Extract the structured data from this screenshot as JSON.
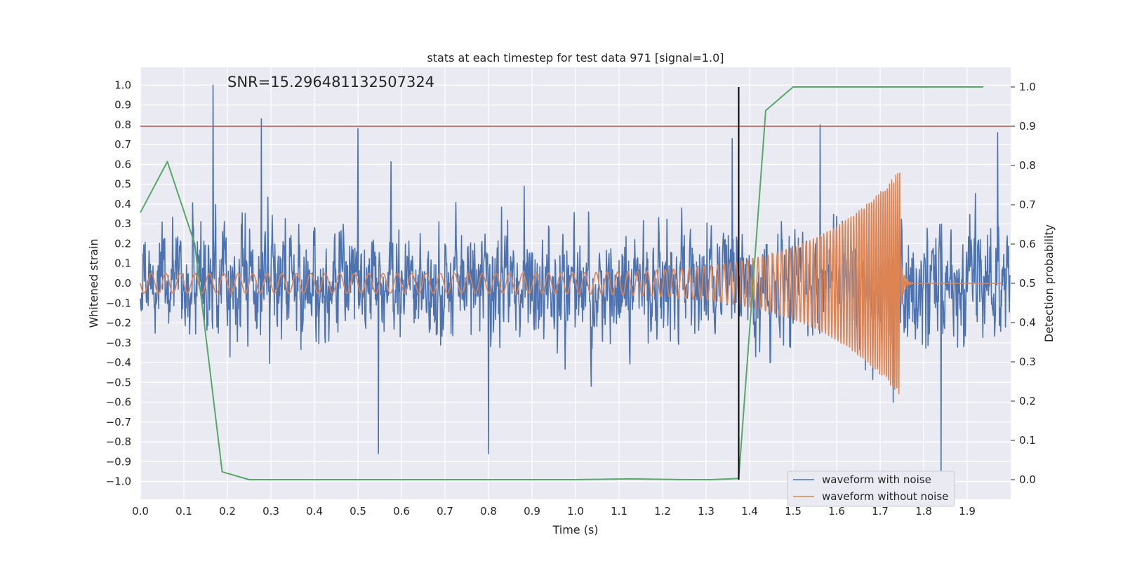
{
  "chart_data": {
    "type": "line",
    "title": "stats at each timestep for test data 971 [signal=1.0]",
    "annotation": "SNR=15.296481132507324",
    "xlabel": "Time (s)",
    "ylabel_left": "Whitened strain",
    "ylabel_right": "Detection probability",
    "xlim": [
      0.0,
      2.0
    ],
    "ylim_left": [
      -1.09,
      1.09
    ],
    "ylim_right": [
      -0.05,
      1.05
    ],
    "x_ticks": [
      "0.0",
      "0.1",
      "0.2",
      "0.3",
      "0.4",
      "0.5",
      "0.6",
      "0.7",
      "0.8",
      "0.9",
      "1.0",
      "1.1",
      "1.2",
      "1.3",
      "1.4",
      "1.5",
      "1.6",
      "1.7",
      "1.8",
      "1.9"
    ],
    "y_ticks_left": [
      "1.0",
      "0.9",
      "0.8",
      "0.7",
      "0.6",
      "0.5",
      "0.4",
      "0.3",
      "0.2",
      "0.1",
      "0.0",
      "−0.1",
      "−0.2",
      "−0.3",
      "−0.4",
      "−0.5",
      "−0.6",
      "−0.7",
      "−0.8",
      "−0.9",
      "−1.0"
    ],
    "y_ticks_right": [
      "1.0",
      "0.9",
      "0.8",
      "0.7",
      "0.6",
      "0.5",
      "0.4",
      "0.3",
      "0.2",
      "0.1",
      "0.0"
    ],
    "grid": true,
    "legend_position": "lower-right",
    "threshold_line": {
      "axis": "right",
      "value": 0.9,
      "color": "#c44e52"
    },
    "marker_line": {
      "x": 1.375,
      "y_from": 0.0,
      "y_to": 1.0,
      "axis": "right",
      "color": "#000000"
    },
    "noisy_waveform": {
      "name": "waveform with noise",
      "color": "#4c72b0",
      "sample_rate": 1000,
      "duration": 2.0,
      "seed": 971,
      "peaks": [
        {
          "x": 0.167,
          "y": 1.0
        },
        {
          "x": 0.278,
          "y": 0.83
        },
        {
          "x": 0.5,
          "y": 0.78
        },
        {
          "x": 0.547,
          "y": -0.86
        },
        {
          "x": 0.8,
          "y": -0.86
        },
        {
          "x": 1.36,
          "y": 0.73
        },
        {
          "x": 1.562,
          "y": 0.8
        },
        {
          "x": 1.73,
          "y": -0.6
        },
        {
          "x": 1.84,
          "y": -0.98
        },
        {
          "x": 1.97,
          "y": 0.76
        }
      ]
    },
    "clean_waveform": {
      "name": "waveform without noise",
      "color": "#dd8452",
      "merger_time": 1.745,
      "start_amplitude": 0.05,
      "peak_amplitude": 0.57,
      "start_frequency": 30,
      "end_frequency": 220
    },
    "detection_probability": {
      "color": "#55a868",
      "x": [
        0.0,
        0.062,
        0.125,
        0.188,
        0.25,
        0.5,
        0.75,
        1.0,
        1.125,
        1.25,
        1.312,
        1.375,
        1.437,
        1.5,
        1.75,
        1.937
      ],
      "y": [
        0.68,
        0.81,
        0.6,
        0.02,
        0.0,
        0.0,
        0.0,
        0.0,
        0.002,
        0.0,
        0.0,
        0.003,
        0.94,
        1.0,
        1.0,
        1.0
      ]
    }
  }
}
